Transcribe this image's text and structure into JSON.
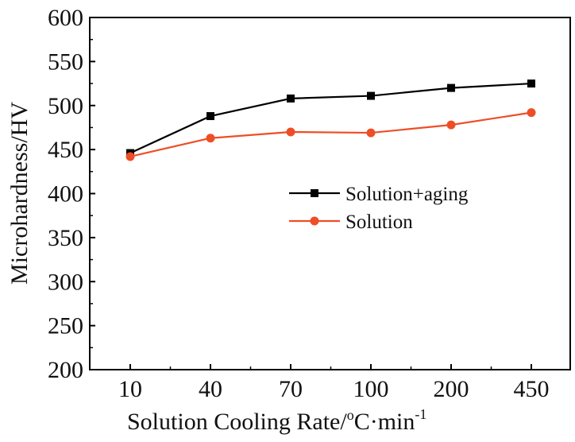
{
  "chart_data": {
    "type": "line",
    "title": "",
    "xlabel": "Solution Cooling Rate/",
    "xlabel_degree": "o",
    "xlabel_unit": "C·min",
    "xlabel_exp": "-1",
    "ylabel": "Microhardness/HV",
    "categories": [
      "10",
      "40",
      "70",
      "100",
      "200",
      "450"
    ],
    "ylim": [
      200,
      600
    ],
    "yticks": [
      200,
      250,
      300,
      350,
      400,
      450,
      500,
      550,
      600
    ],
    "grid": false,
    "legend_position": "center",
    "series": [
      {
        "name": "Solution+aging",
        "color": "#000000",
        "marker": "square",
        "values": [
          446,
          488,
          508,
          511,
          520,
          525
        ]
      },
      {
        "name": "Solution",
        "color": "#ee4e26",
        "marker": "circle",
        "values": [
          442,
          463,
          470,
          469,
          478,
          492
        ]
      }
    ]
  }
}
